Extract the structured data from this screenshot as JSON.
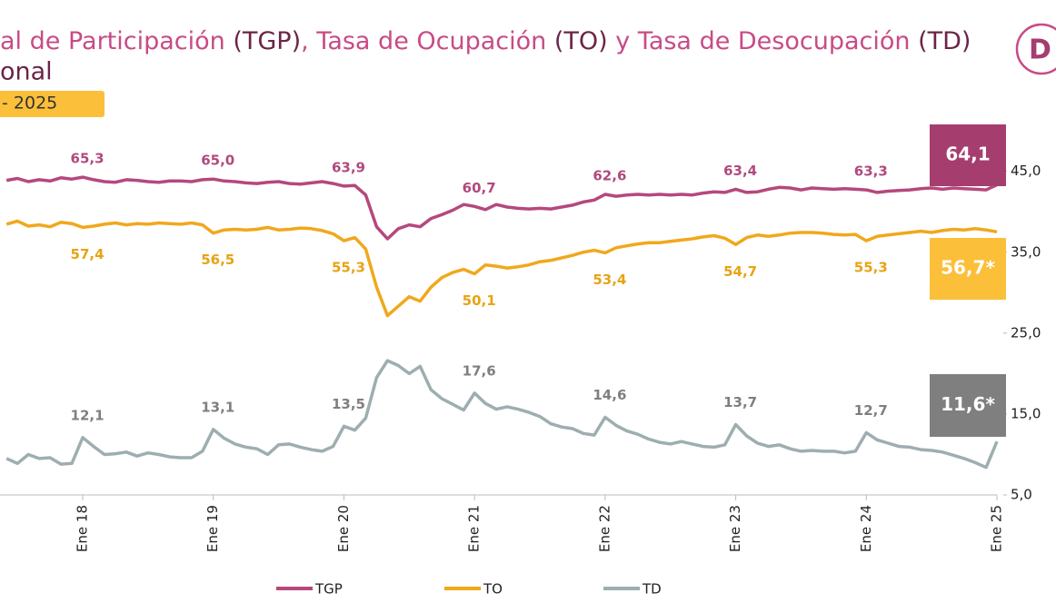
{
  "chart_data": {
    "type": "line",
    "title_parts": [
      "al de Participación ",
      "(TGP)",
      ", Tasa de Ocupación ",
      "(TO)",
      " y Tasa de Desocupación ",
      "(TD)"
    ],
    "subtitle": "onal",
    "badge": "- 2025",
    "logo": "D",
    "categories": [
      null,
      null,
      null,
      null,
      null,
      null,
      null,
      "Ene 18",
      null,
      null,
      null,
      null,
      null,
      null,
      null,
      null,
      null,
      null,
      null,
      "Ene 19",
      null,
      null,
      null,
      null,
      null,
      null,
      null,
      null,
      null,
      null,
      null,
      "Ene 20",
      null,
      null,
      null,
      null,
      null,
      null,
      null,
      null,
      null,
      null,
      null,
      "Ene 21",
      null,
      null,
      null,
      null,
      null,
      null,
      null,
      null,
      null,
      null,
      null,
      "Ene 22",
      null,
      null,
      null,
      null,
      null,
      null,
      null,
      null,
      null,
      null,
      null,
      "Ene 23",
      null,
      null,
      null,
      null,
      null,
      null,
      null,
      null,
      null,
      null,
      null,
      "Ene 24",
      null,
      null,
      null,
      null,
      null,
      null,
      null,
      null,
      null,
      null,
      null,
      "Ene 25"
    ],
    "ylim": [
      15.3,
      73.6
    ],
    "y2lim": [
      5,
      50.8
    ],
    "y2ticks": [
      {
        "value": 5,
        "label": "5,0"
      },
      {
        "value": 15,
        "label": "15,0"
      },
      {
        "value": 25,
        "label": "25,0"
      },
      {
        "value": 35,
        "label": "35,0"
      },
      {
        "value": 45,
        "label": "45,0"
      }
    ],
    "series": [
      {
        "name": "TGP",
        "color": "#b5487c",
        "label_color": "#b04a7e",
        "box_color": "#a63d6f",
        "values": [
          64.8,
          65.1,
          64.6,
          64.9,
          64.7,
          65.2,
          65.0,
          65.3,
          64.9,
          64.6,
          64.5,
          64.9,
          64.8,
          64.6,
          64.5,
          64.7,
          64.7,
          64.6,
          64.9,
          65.0,
          64.7,
          64.6,
          64.4,
          64.3,
          64.5,
          64.6,
          64.3,
          64.2,
          64.4,
          64.6,
          64.3,
          63.9,
          64.0,
          62.5,
          57.5,
          55.6,
          57.2,
          57.8,
          57.5,
          58.8,
          59.4,
          60.1,
          61.0,
          60.7,
          60.2,
          61.0,
          60.6,
          60.4,
          60.3,
          60.4,
          60.3,
          60.6,
          60.9,
          61.4,
          61.7,
          62.6,
          62.3,
          62.5,
          62.6,
          62.5,
          62.6,
          62.5,
          62.6,
          62.5,
          62.8,
          63.0,
          62.9,
          63.4,
          62.9,
          63.0,
          63.4,
          63.7,
          63.6,
          63.3,
          63.6,
          63.5,
          63.4,
          63.5,
          63.4,
          63.3,
          62.9,
          63.1,
          63.2,
          63.3,
          63.5,
          63.6,
          63.4,
          63.6,
          63.5,
          63.4,
          63.3,
          64.1
        ],
        "value_labels": [
          null,
          null,
          null,
          null,
          null,
          null,
          null,
          "65,3",
          null,
          null,
          null,
          null,
          null,
          null,
          null,
          null,
          null,
          null,
          null,
          "65,0",
          null,
          null,
          null,
          null,
          null,
          null,
          null,
          null,
          null,
          null,
          null,
          "63,9",
          null,
          null,
          null,
          null,
          null,
          null,
          null,
          null,
          null,
          null,
          null,
          "60,7",
          null,
          null,
          null,
          null,
          null,
          null,
          null,
          null,
          null,
          null,
          null,
          "62,6",
          null,
          null,
          null,
          null,
          null,
          null,
          null,
          null,
          null,
          null,
          null,
          "63,4",
          null,
          null,
          null,
          null,
          null,
          null,
          null,
          null,
          null,
          null,
          null,
          "63,3",
          null,
          null,
          null,
          null,
          null,
          null,
          null,
          null,
          null,
          null,
          null,
          "64,1"
        ]
      },
      {
        "name": "TO",
        "color": "#f0a81c",
        "label_color": "#e8a313",
        "box_color": "#fbbf3a",
        "values": [
          57.9,
          58.4,
          57.6,
          57.8,
          57.5,
          58.2,
          58.0,
          57.4,
          57.6,
          57.9,
          58.1,
          57.8,
          58.0,
          57.9,
          58.1,
          58.0,
          57.9,
          58.1,
          57.8,
          56.5,
          57.0,
          57.1,
          57.0,
          57.1,
          57.4,
          57.0,
          57.1,
          57.3,
          57.2,
          56.9,
          56.4,
          55.3,
          55.8,
          54.0,
          48.0,
          43.5,
          45.0,
          46.5,
          45.8,
          48.0,
          49.5,
          50.3,
          50.8,
          50.1,
          51.5,
          51.3,
          51.0,
          51.2,
          51.5,
          52.0,
          52.2,
          52.6,
          53.0,
          53.5,
          53.8,
          53.4,
          54.2,
          54.5,
          54.8,
          55.0,
          55.0,
          55.2,
          55.4,
          55.6,
          55.9,
          56.1,
          55.7,
          54.7,
          55.8,
          56.2,
          56.0,
          56.2,
          56.5,
          56.6,
          56.6,
          56.5,
          56.3,
          56.2,
          56.3,
          55.3,
          56.0,
          56.2,
          56.4,
          56.6,
          56.8,
          56.6,
          56.9,
          57.1,
          57.0,
          57.2,
          57.0,
          56.7
        ],
        "value_labels": [
          null,
          null,
          null,
          null,
          null,
          null,
          null,
          "57,4",
          null,
          null,
          null,
          null,
          null,
          null,
          null,
          null,
          null,
          null,
          null,
          "56,5",
          null,
          null,
          null,
          null,
          null,
          null,
          null,
          null,
          null,
          null,
          null,
          "55,3",
          null,
          null,
          null,
          null,
          null,
          null,
          null,
          null,
          null,
          null,
          null,
          "50,1",
          null,
          null,
          null,
          null,
          null,
          null,
          null,
          null,
          null,
          null,
          null,
          "53,4",
          null,
          null,
          null,
          null,
          null,
          null,
          null,
          null,
          null,
          null,
          null,
          "54,7",
          null,
          null,
          null,
          null,
          null,
          null,
          null,
          null,
          null,
          null,
          null,
          "55,3",
          null,
          null,
          null,
          null,
          null,
          null,
          null,
          null,
          null,
          null,
          null,
          "56,7*"
        ]
      },
      {
        "name": "TD",
        "axis": "y2",
        "color": "#9eaeb0",
        "label_color": "#7f7f7f",
        "box_color": "#7f7f7f",
        "values": [
          9.5,
          8.9,
          10.0,
          9.5,
          9.6,
          8.8,
          8.9,
          12.1,
          11.0,
          10.0,
          10.1,
          10.3,
          9.8,
          10.2,
          10.0,
          9.7,
          9.6,
          9.6,
          10.4,
          13.1,
          12.0,
          11.3,
          10.9,
          10.7,
          10.0,
          11.2,
          11.3,
          10.9,
          10.6,
          10.4,
          11.0,
          13.5,
          13.0,
          14.5,
          19.5,
          21.6,
          21.0,
          20.0,
          20.9,
          18.0,
          16.9,
          16.2,
          15.5,
          17.6,
          16.3,
          15.6,
          15.9,
          15.6,
          15.2,
          14.7,
          13.8,
          13.4,
          13.2,
          12.6,
          12.4,
          14.6,
          13.6,
          12.9,
          12.5,
          11.9,
          11.5,
          11.3,
          11.6,
          11.3,
          11.0,
          10.9,
          11.2,
          13.7,
          12.3,
          11.4,
          11.0,
          11.2,
          10.7,
          10.4,
          10.5,
          10.4,
          10.4,
          10.2,
          10.4,
          12.7,
          11.8,
          11.4,
          11.0,
          10.9,
          10.6,
          10.5,
          10.3,
          9.9,
          9.5,
          9.0,
          8.4,
          11.6
        ],
        "value_labels": [
          null,
          null,
          null,
          null,
          null,
          null,
          null,
          "12,1",
          null,
          null,
          null,
          null,
          null,
          null,
          null,
          null,
          null,
          null,
          null,
          "13,1",
          null,
          null,
          null,
          null,
          null,
          null,
          null,
          null,
          null,
          null,
          null,
          "13,5",
          null,
          null,
          null,
          null,
          null,
          null,
          null,
          null,
          null,
          null,
          null,
          "17,6",
          null,
          null,
          null,
          null,
          null,
          null,
          null,
          null,
          null,
          null,
          null,
          "14,6",
          null,
          null,
          null,
          null,
          null,
          null,
          null,
          null,
          null,
          null,
          null,
          "13,7",
          null,
          null,
          null,
          null,
          null,
          null,
          null,
          null,
          null,
          null,
          null,
          "12,7",
          null,
          null,
          null,
          null,
          null,
          null,
          null,
          null,
          null,
          null,
          null,
          "11,6*"
        ]
      }
    ]
  }
}
